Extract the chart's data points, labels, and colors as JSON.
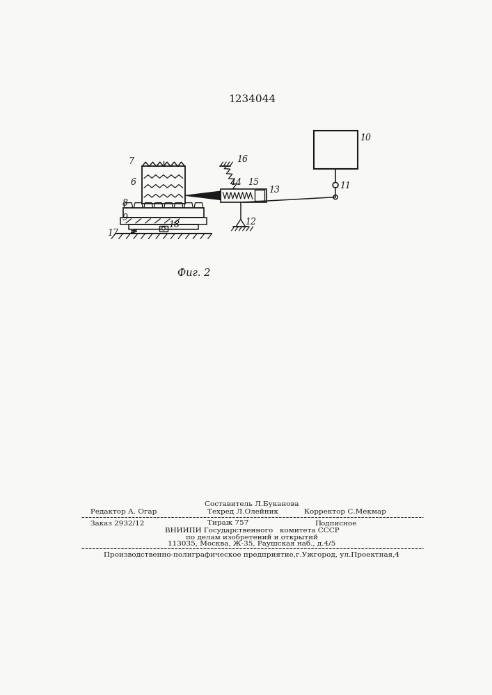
{
  "patent_number": "1234044",
  "fig_caption": "Фиг. 2",
  "bg_color": "#f8f8f6",
  "line_color": "#1a1a1a",
  "footer_line1_left": "Редактор А. Огар",
  "footer_line1_center": "Составитель Л.Буканова",
  "footer_line1_tech": "Техред Л.Олейник",
  "footer_line1_corr": "Корректор С.Мекмар",
  "footer_line2_left": "Заказ 2932/12",
  "footer_line2_center": "Тираж 757",
  "footer_line2_right": "Подписное",
  "footer_line3": "ВНИИПИ Государственного   комитета СССР",
  "footer_line4": "по делам изобретений и открытий",
  "footer_line5": "113035, Москва, Ж-35, Раушская наб., д.4/5",
  "footer_line6": "Производственно-полиграфическое предприятие,г.Ужгород, ул.Проектная,4"
}
